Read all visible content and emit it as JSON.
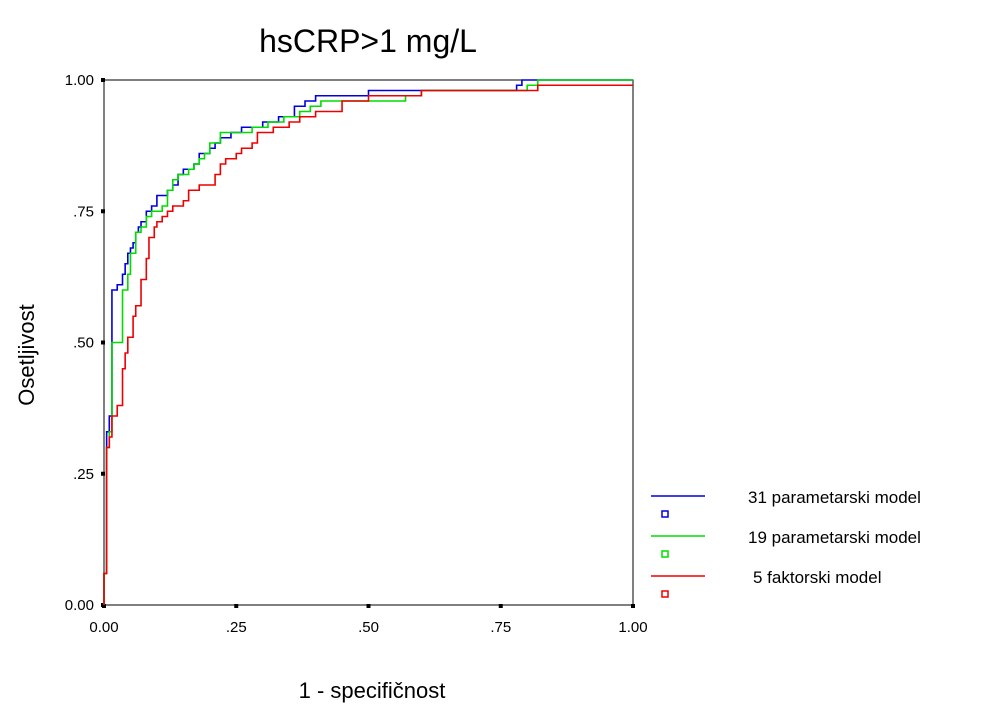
{
  "chart_data": {
    "type": "line",
    "title": "hsCRP>1 mg/L",
    "xlabel": "1 - specifičnost",
    "ylabel": "Osetljivost",
    "xlim": [
      0,
      1
    ],
    "ylim": [
      0,
      1
    ],
    "xticks": [
      0,
      0.25,
      0.5,
      0.75,
      1
    ],
    "yticks": [
      0,
      0.25,
      0.5,
      0.75,
      1
    ],
    "xtick_labels": [
      "0.00",
      ".25",
      ".50",
      ".75",
      "1.00"
    ],
    "ytick_labels": [
      "0.00",
      ".25",
      ".50",
      ".75",
      "1.00"
    ],
    "grid": false,
    "legend_position": "right",
    "series": [
      {
        "name": "31 parametarski model",
        "color": "#0000dd",
        "points": [
          [
            0,
            0
          ],
          [
            0,
            0.06
          ],
          [
            0.005,
            0.33
          ],
          [
            0.01,
            0.36
          ],
          [
            0.015,
            0.6
          ],
          [
            0.025,
            0.61
          ],
          [
            0.035,
            0.63
          ],
          [
            0.04,
            0.65
          ],
          [
            0.045,
            0.67
          ],
          [
            0.05,
            0.68
          ],
          [
            0.055,
            0.69
          ],
          [
            0.06,
            0.71
          ],
          [
            0.065,
            0.72
          ],
          [
            0.07,
            0.73
          ],
          [
            0.08,
            0.75
          ],
          [
            0.09,
            0.76
          ],
          [
            0.1,
            0.78
          ],
          [
            0.12,
            0.79
          ],
          [
            0.13,
            0.8
          ],
          [
            0.14,
            0.82
          ],
          [
            0.15,
            0.83
          ],
          [
            0.17,
            0.84
          ],
          [
            0.18,
            0.86
          ],
          [
            0.2,
            0.87
          ],
          [
            0.21,
            0.88
          ],
          [
            0.22,
            0.89
          ],
          [
            0.24,
            0.9
          ],
          [
            0.26,
            0.91
          ],
          [
            0.3,
            0.92
          ],
          [
            0.33,
            0.93
          ],
          [
            0.36,
            0.95
          ],
          [
            0.38,
            0.96
          ],
          [
            0.4,
            0.97
          ],
          [
            0.45,
            0.97
          ],
          [
            0.5,
            0.98
          ],
          [
            0.6,
            0.98
          ],
          [
            0.7,
            0.98
          ],
          [
            0.78,
            0.99
          ],
          [
            0.79,
            1.0
          ],
          [
            1.0,
            1.0
          ]
        ]
      },
      {
        "name": "19 parametarski model",
        "color": "#00dd00",
        "points": [
          [
            0,
            0
          ],
          [
            0,
            0.06
          ],
          [
            0.005,
            0.3
          ],
          [
            0.01,
            0.33
          ],
          [
            0.015,
            0.5
          ],
          [
            0.03,
            0.5
          ],
          [
            0.035,
            0.6
          ],
          [
            0.045,
            0.63
          ],
          [
            0.05,
            0.67
          ],
          [
            0.06,
            0.71
          ],
          [
            0.07,
            0.72
          ],
          [
            0.08,
            0.74
          ],
          [
            0.09,
            0.75
          ],
          [
            0.11,
            0.76
          ],
          [
            0.12,
            0.79
          ],
          [
            0.13,
            0.81
          ],
          [
            0.14,
            0.82
          ],
          [
            0.16,
            0.83
          ],
          [
            0.17,
            0.84
          ],
          [
            0.18,
            0.85
          ],
          [
            0.19,
            0.86
          ],
          [
            0.2,
            0.88
          ],
          [
            0.22,
            0.9
          ],
          [
            0.25,
            0.9
          ],
          [
            0.28,
            0.91
          ],
          [
            0.31,
            0.92
          ],
          [
            0.34,
            0.93
          ],
          [
            0.37,
            0.94
          ],
          [
            0.39,
            0.95
          ],
          [
            0.41,
            0.96
          ],
          [
            0.45,
            0.96
          ],
          [
            0.57,
            0.97
          ],
          [
            0.6,
            0.98
          ],
          [
            0.8,
            0.99
          ],
          [
            0.82,
            1.0
          ],
          [
            1.0,
            1.0
          ]
        ]
      },
      {
        "name": "5 faktorski model",
        "color": "#ee0000",
        "points": [
          [
            0,
            0
          ],
          [
            0,
            0.06
          ],
          [
            0.005,
            0.3
          ],
          [
            0.01,
            0.32
          ],
          [
            0.015,
            0.36
          ],
          [
            0.025,
            0.38
          ],
          [
            0.035,
            0.45
          ],
          [
            0.04,
            0.48
          ],
          [
            0.045,
            0.51
          ],
          [
            0.055,
            0.55
          ],
          [
            0.06,
            0.57
          ],
          [
            0.07,
            0.62
          ],
          [
            0.08,
            0.66
          ],
          [
            0.085,
            0.7
          ],
          [
            0.095,
            0.72
          ],
          [
            0.1,
            0.73
          ],
          [
            0.11,
            0.74
          ],
          [
            0.12,
            0.75
          ],
          [
            0.13,
            0.76
          ],
          [
            0.15,
            0.77
          ],
          [
            0.16,
            0.79
          ],
          [
            0.18,
            0.8
          ],
          [
            0.21,
            0.82
          ],
          [
            0.22,
            0.84
          ],
          [
            0.23,
            0.85
          ],
          [
            0.25,
            0.86
          ],
          [
            0.26,
            0.87
          ],
          [
            0.28,
            0.88
          ],
          [
            0.29,
            0.9
          ],
          [
            0.32,
            0.91
          ],
          [
            0.35,
            0.92
          ],
          [
            0.37,
            0.93
          ],
          [
            0.4,
            0.94
          ],
          [
            0.45,
            0.96
          ],
          [
            0.5,
            0.97
          ],
          [
            0.6,
            0.98
          ],
          [
            0.8,
            0.98
          ],
          [
            0.82,
            0.99
          ],
          [
            1.0,
            0.99
          ]
        ]
      }
    ]
  }
}
